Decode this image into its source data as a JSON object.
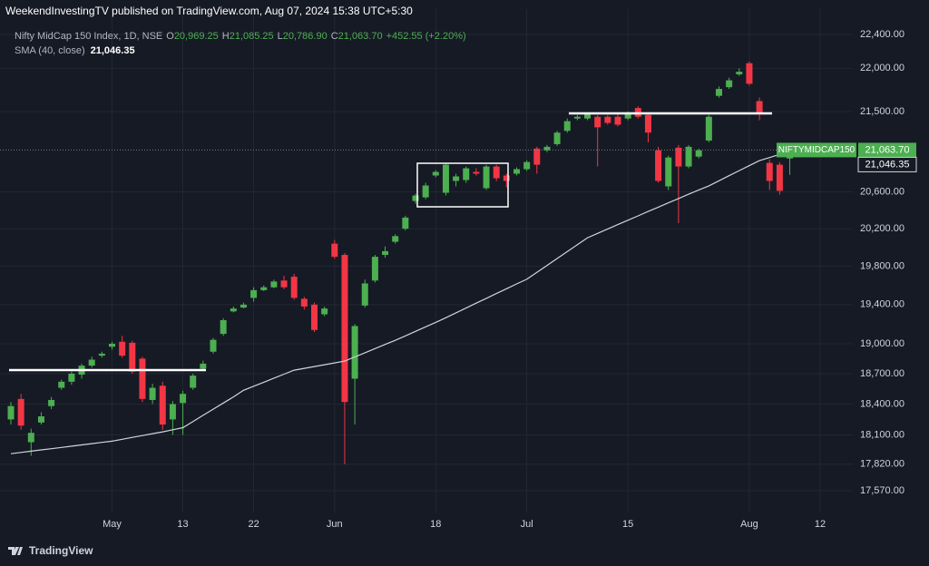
{
  "header": {
    "published": "WeekendInvestingTV published on TradingView.com, Aug 07, 2024 15:38 UTC+5:30"
  },
  "chart_data": {
    "type": "candlestick",
    "title": "Nifty MidCap 150 Index, 1D, NSE",
    "ohlc_legend": [
      {
        "key": "O",
        "label": "20,969.25"
      },
      {
        "key": "H",
        "label": "21,085.25"
      },
      {
        "key": "L",
        "label": "20,786.90"
      },
      {
        "key": "C",
        "label": "21,063.70"
      }
    ],
    "change_label": "+452.55 (+2.20%)",
    "symbol_label": "NIFTYMIDCAP150",
    "categories": [
      null,
      null,
      null,
      null,
      null,
      null,
      null,
      null,
      null,
      null,
      "May",
      null,
      null,
      null,
      null,
      null,
      null,
      "13",
      null,
      null,
      null,
      null,
      null,
      null,
      "22",
      null,
      null,
      null,
      null,
      null,
      null,
      null,
      "Jun",
      null,
      null,
      null,
      null,
      null,
      null,
      null,
      null,
      null,
      "18",
      null,
      null,
      null,
      null,
      null,
      null,
      null,
      null,
      "Jul",
      null,
      null,
      null,
      null,
      null,
      null,
      null,
      null,
      null,
      "15",
      null,
      null,
      null,
      null,
      null,
      null,
      null,
      null,
      null,
      null,
      null,
      "Aug",
      null,
      null,
      null,
      null,
      null,
      null,
      "12",
      null,
      null
    ],
    "open": [
      18250,
      18450,
      18030,
      18220,
      18380,
      18560,
      18620,
      18690,
      18780,
      18880,
      18970,
      19020,
      19010,
      18850,
      18440,
      18580,
      18250,
      18410,
      18560,
      18750,
      18920,
      19100,
      19330,
      19370,
      19470,
      19550,
      19580,
      19650,
      19690,
      19460,
      19400,
      19300,
      20040,
      19920,
      18650,
      19390,
      19650,
      19920,
      20060,
      20200,
      20500,
      20540,
      20780,
      20590,
      20720,
      20730,
      20820,
      20640,
      20880,
      20780,
      20800,
      20850,
      21080,
      21060,
      21130,
      21280,
      21420,
      21420,
      21440,
      21440,
      21440,
      21420,
      21540,
      21460,
      21060,
      20660,
      21090,
      20880,
      20990,
      21170,
      21680,
      21780,
      21930,
      22060,
      21620,
      20920,
      20900,
      20969.25,
      null,
      null,
      null,
      null,
      null
    ],
    "high": [
      18420,
      18500,
      18160,
      18320,
      18470,
      18640,
      18720,
      18800,
      18870,
      18920,
      19020,
      19080,
      19030,
      18870,
      18600,
      18620,
      18430,
      18530,
      18700,
      18830,
      19060,
      19260,
      19380,
      19420,
      19580,
      19600,
      19660,
      19700,
      19720,
      19480,
      19420,
      19380,
      20080,
      19940,
      19200,
      19660,
      19920,
      20010,
      20140,
      20340,
      20580,
      20700,
      20840,
      20920,
      20800,
      20880,
      20860,
      20900,
      20900,
      20800,
      20870,
      20950,
      21100,
      21120,
      21280,
      21420,
      21460,
      21490,
      21460,
      21460,
      21470,
      21500,
      21560,
      21480,
      21100,
      21000,
      21120,
      21120,
      21080,
      21460,
      21790,
      21890,
      22000,
      22080,
      21660,
      20960,
      20930,
      21085.25,
      null,
      null,
      null,
      null,
      null
    ],
    "low": [
      18200,
      18150,
      17900,
      18200,
      18350,
      18540,
      18590,
      18650,
      18760,
      18860,
      18940,
      18860,
      18700,
      18420,
      18400,
      18150,
      18100,
      18100,
      18540,
      18730,
      18900,
      19080,
      19320,
      19360,
      19430,
      19540,
      19570,
      19560,
      19450,
      19350,
      19120,
      19280,
      19880,
      17820,
      18200,
      19370,
      19630,
      19890,
      20040,
      20180,
      20470,
      20520,
      20760,
      20560,
      20660,
      20700,
      20780,
      20620,
      20720,
      20650,
      20780,
      20830,
      20800,
      21040,
      21110,
      21260,
      21400,
      21400,
      20880,
      21350,
      21330,
      21400,
      21420,
      21150,
      20700,
      20620,
      20260,
      20860,
      20970,
      21150,
      21660,
      21760,
      21910,
      21800,
      21400,
      20620,
      20570,
      20786.9,
      null,
      null,
      null,
      null,
      null
    ],
    "close": [
      18380,
      18190,
      18120,
      18280,
      18440,
      18620,
      18700,
      18780,
      18840,
      18900,
      19000,
      18880,
      18720,
      18450,
      18560,
      18200,
      18400,
      18500,
      18680,
      18800,
      19040,
      19240,
      19360,
      19400,
      19550,
      19580,
      19640,
      19580,
      19470,
      19380,
      19140,
      19360,
      19900,
      18420,
      19180,
      19620,
      19900,
      19960,
      20120,
      20320,
      20560,
      20670,
      20820,
      20900,
      20770,
      20860,
      20800,
      20880,
      20750,
      20720,
      20850,
      20930,
      20900,
      21100,
      21260,
      21390,
      21440,
      21470,
      21320,
      21370,
      21350,
      21480,
      21440,
      21260,
      20720,
      20980,
      20880,
      21100,
      21060,
      21440,
      21760,
      21860,
      21960,
      21820,
      21490,
      20720,
      20611.15,
      21063.7,
      null,
      null,
      null,
      null,
      null
    ],
    "up_color": "#4caf50",
    "down_color": "#f23645",
    "series": [
      {
        "name": "SMA (40, close)",
        "color": "#d1d4dc",
        "value_label": "21,046.35",
        "values": [
          17920,
          17932,
          17944,
          17956,
          17968,
          17980,
          17992,
          18004,
          18016,
          18028,
          18040,
          18058,
          18076,
          18094,
          18112,
          18130,
          18150,
          18170,
          18230,
          18290,
          18350,
          18410,
          18470,
          18535,
          18575,
          18615,
          18655,
          18695,
          18735,
          18753,
          18771,
          18789,
          18807,
          18825,
          18867,
          18909,
          18951,
          18993,
          19035,
          19080,
          19126,
          19172,
          19218,
          19265,
          19315,
          19365,
          19415,
          19465,
          19515,
          19565,
          19615,
          19663,
          19736,
          19809,
          19882,
          19955,
          20028,
          20103,
          20150,
          20197,
          20244,
          20291,
          20338,
          20386,
          20433,
          20480,
          20527,
          20574,
          20621,
          20666,
          20722,
          20778,
          20834,
          20890,
          20945,
          20980,
          21015,
          21046.35,
          null,
          null,
          null,
          null,
          null
        ]
      }
    ],
    "log_scale": true,
    "grid": true,
    "ylim": [
      17368,
      22705
    ],
    "yticks": [
      {
        "value": 22400,
        "label": "22,400.00"
      },
      {
        "value": 22000,
        "label": "22,000.00"
      },
      {
        "value": 21500,
        "label": "21,500.00"
      },
      {
        "value": 20600,
        "label": "20,600.00"
      },
      {
        "value": 20200,
        "label": "20,200.00"
      },
      {
        "value": 19800,
        "label": "19,800.00"
      },
      {
        "value": 19400,
        "label": "19,400.00"
      },
      {
        "value": 19000,
        "label": "19,000.00"
      },
      {
        "value": 18700,
        "label": "18,700.00"
      },
      {
        "value": 18400,
        "label": "18,400.00"
      },
      {
        "value": 18100,
        "label": "18,100.00"
      },
      {
        "value": 17820,
        "label": "17,820.00"
      },
      {
        "value": 17570,
        "label": "17,570.00"
      }
    ]
  },
  "footer": {
    "brand": "TradingView"
  }
}
